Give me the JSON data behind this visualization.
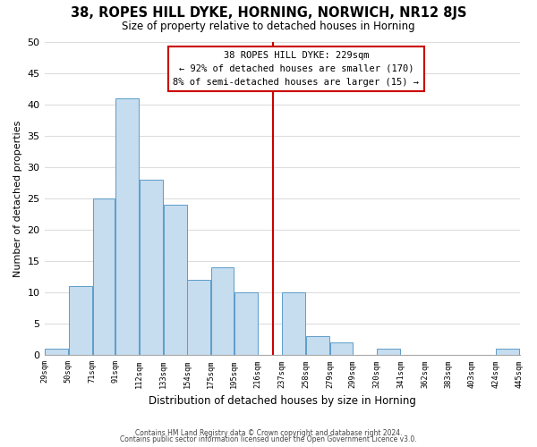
{
  "title": "38, ROPES HILL DYKE, HORNING, NORWICH, NR12 8JS",
  "subtitle": "Size of property relative to detached houses in Horning",
  "xlabel": "Distribution of detached houses by size in Horning",
  "ylabel": "Number of detached properties",
  "bar_edges": [
    29,
    50,
    71,
    91,
    112,
    133,
    154,
    175,
    195,
    216,
    237,
    258,
    279,
    299,
    320,
    341,
    362,
    383,
    403,
    424,
    445
  ],
  "bar_heights": [
    1,
    11,
    25,
    41,
    28,
    24,
    12,
    14,
    10,
    0,
    10,
    3,
    2,
    0,
    1,
    0,
    0,
    0,
    0,
    1
  ],
  "bar_color": "#c6dcef",
  "bar_edge_color": "#5b9dc9",
  "vline_x": 229,
  "vline_color": "#cc0000",
  "ylim": [
    0,
    50
  ],
  "annotation_title": "38 ROPES HILL DYKE: 229sqm",
  "annotation_line1": "← 92% of detached houses are smaller (170)",
  "annotation_line2": "8% of semi-detached houses are larger (15) →",
  "annotation_box_color": "#ffffff",
  "annotation_box_edge": "#cc0000",
  "tick_labels": [
    "29sqm",
    "50sqm",
    "71sqm",
    "91sqm",
    "112sqm",
    "133sqm",
    "154sqm",
    "175sqm",
    "195sqm",
    "216sqm",
    "237sqm",
    "258sqm",
    "279sqm",
    "299sqm",
    "320sqm",
    "341sqm",
    "362sqm",
    "383sqm",
    "403sqm",
    "424sqm",
    "445sqm"
  ],
  "yticks": [
    0,
    5,
    10,
    15,
    20,
    25,
    30,
    35,
    40,
    45,
    50
  ],
  "footer1": "Contains HM Land Registry data © Crown copyright and database right 2024.",
  "footer2": "Contains public sector information licensed under the Open Government Licence v3.0.",
  "bg_color": "#ffffff",
  "grid_color": "#dddddd"
}
